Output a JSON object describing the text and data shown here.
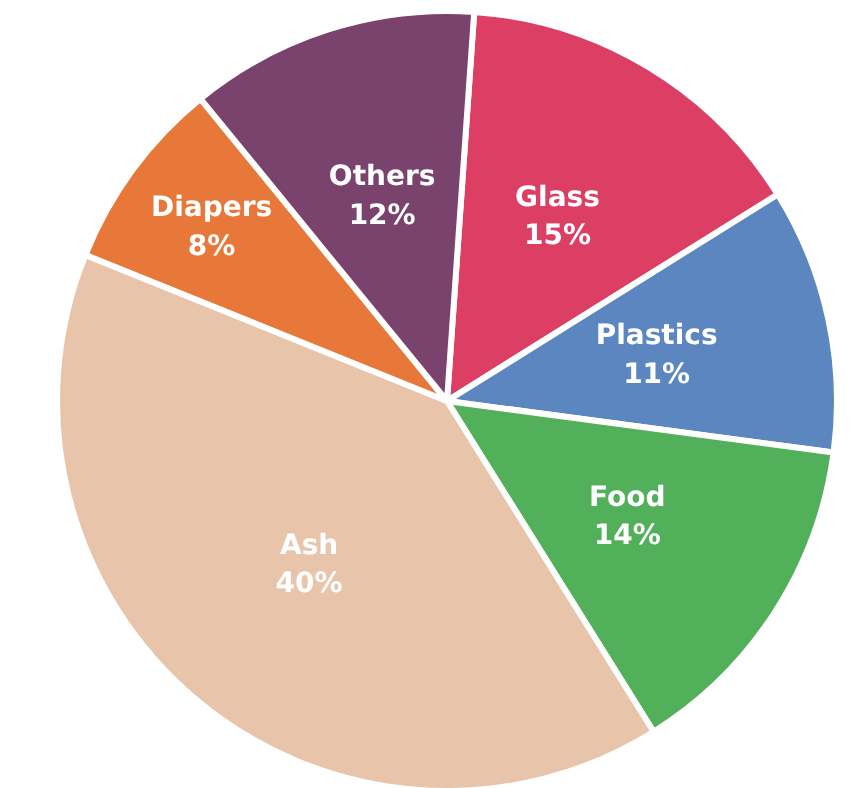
{
  "chart_data": {
    "type": "pie",
    "categories": [
      "Glass",
      "Plastics",
      "Food",
      "Ash",
      "Diapers",
      "Others"
    ],
    "values": [
      15,
      11,
      14,
      40,
      8,
      12
    ],
    "colors": [
      "#dc3f63",
      "#5b86bf",
      "#52b05a",
      "#e8c4ab",
      "#e8783a",
      "#7a436e"
    ],
    "value_labels": [
      "15%",
      "11%",
      "14%",
      "40%",
      "8%",
      "12%"
    ]
  }
}
